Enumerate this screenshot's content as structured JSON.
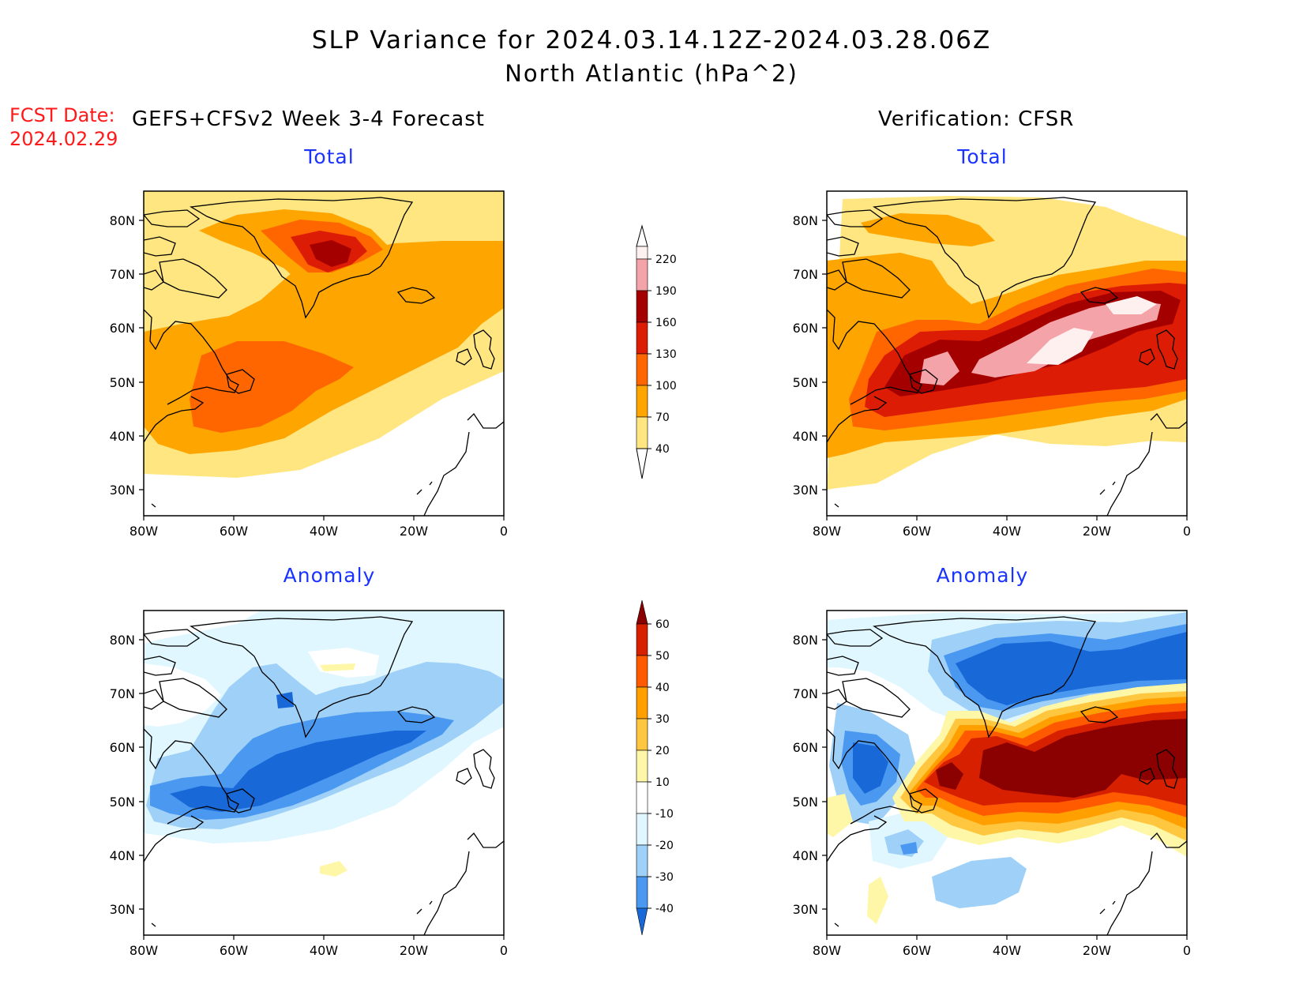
{
  "title": {
    "line1": "SLP Variance for 2024.03.14.12Z-2024.03.28.06Z",
    "line2": "North Atlantic (hPa^2)"
  },
  "forecast_date": {
    "label": "FCST Date:",
    "value": "2024.02.29"
  },
  "left_header": "GEFS+CFSv2 Week 3-4 Forecast",
  "right_header": "Verification: CFSR",
  "panels": {
    "top_left_title": "Total",
    "top_right_title": "Total",
    "bottom_left_title": "Anomaly",
    "bottom_right_title": "Anomaly"
  },
  "axes": {
    "lat_labels": [
      "80N",
      "70N",
      "60N",
      "50N",
      "40N",
      "30N"
    ],
    "lon_labels": [
      "80W",
      "60W",
      "40W",
      "20W",
      "0"
    ]
  },
  "total_colorbar": {
    "levels": [
      "220",
      "190",
      "160",
      "130",
      "100",
      "70",
      "40"
    ],
    "colors": [
      "#fff0f0",
      "#f4a3a8",
      "#a50000",
      "#dd1c05",
      "#ff6600",
      "#ffa500",
      "#ffe680"
    ]
  },
  "anomaly_colorbar": {
    "levels": [
      "60",
      "50",
      "40",
      "30",
      "20",
      "10",
      "-10",
      "-20",
      "-30",
      "-40"
    ],
    "colors": [
      "#8b0000",
      "#d62000",
      "#ff5a00",
      "#ffa000",
      "#ffc640",
      "#fff7a8",
      "#ffffff",
      "#e0f7ff",
      "#9fd0f8",
      "#4a98f0",
      "#1868d8"
    ]
  },
  "colors": {
    "title_text": "#000000",
    "fcst_text": "#ff1a1a",
    "panel_title": "#1a33ff"
  }
}
